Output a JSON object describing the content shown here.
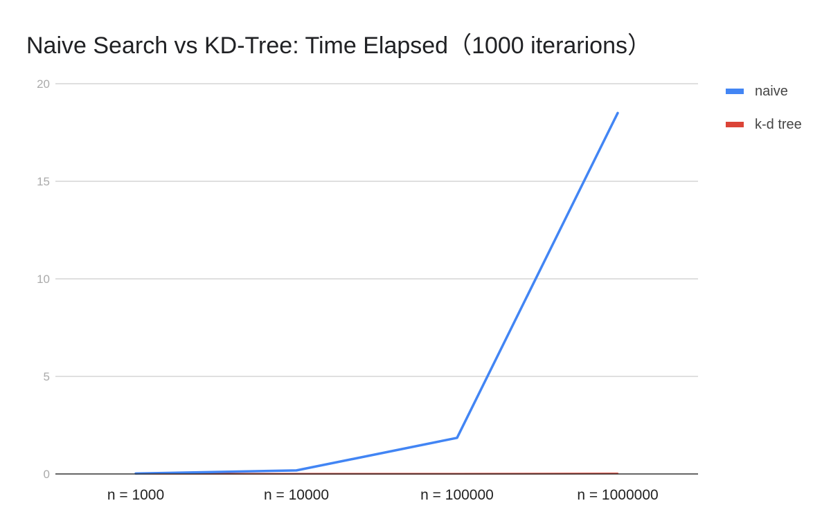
{
  "chart_data": {
    "type": "line",
    "title": "Naive Search vs KD-Tree: Time Elapsed（1000 iterarions）",
    "xlabel": "",
    "ylabel": "",
    "categories": [
      "n = 1000",
      "n = 10000",
      "n = 100000",
      "n = 1000000"
    ],
    "ylim": [
      0,
      20
    ],
    "yticks": [
      0,
      5,
      10,
      15,
      20
    ],
    "grid": true,
    "legend_position": "right",
    "series": [
      {
        "name": "naive",
        "color": "#4285f4",
        "values": [
          0.02,
          0.18,
          1.85,
          18.5
        ]
      },
      {
        "name": "k-d tree",
        "color": "#db4437",
        "values": [
          0.01,
          0.01,
          0.01,
          0.02
        ]
      }
    ]
  }
}
